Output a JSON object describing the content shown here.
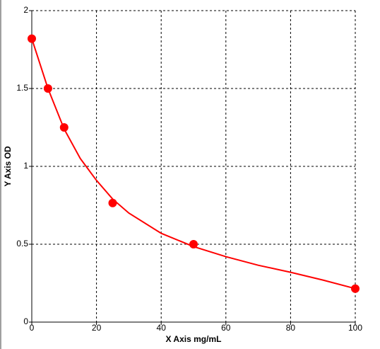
{
  "chart_data": {
    "type": "scatter",
    "x_label": "X Axis mg/mL",
    "y_label": "Y Axis OD",
    "xlim": [
      0,
      100
    ],
    "ylim": [
      0,
      2
    ],
    "xticks": [
      0,
      20,
      40,
      60,
      80,
      100
    ],
    "yticks": [
      0,
      0.5,
      1,
      1.5,
      2
    ],
    "grid": true,
    "series": [
      {
        "mode": "markers",
        "color": "#ff0000",
        "x": [
          0,
          5,
          10,
          25,
          50,
          100
        ],
        "values": [
          1.82,
          1.5,
          1.25,
          0.765,
          0.5,
          0.215
        ]
      },
      {
        "mode": "line",
        "color": "#ff0000",
        "x": [
          0,
          5,
          10,
          15,
          20,
          25,
          30,
          40,
          50,
          60,
          70,
          80,
          90,
          100
        ],
        "values": [
          1.82,
          1.5,
          1.24,
          1.05,
          0.91,
          0.79,
          0.7,
          0.57,
          0.485,
          0.42,
          0.365,
          0.32,
          0.27,
          0.215
        ]
      }
    ]
  }
}
